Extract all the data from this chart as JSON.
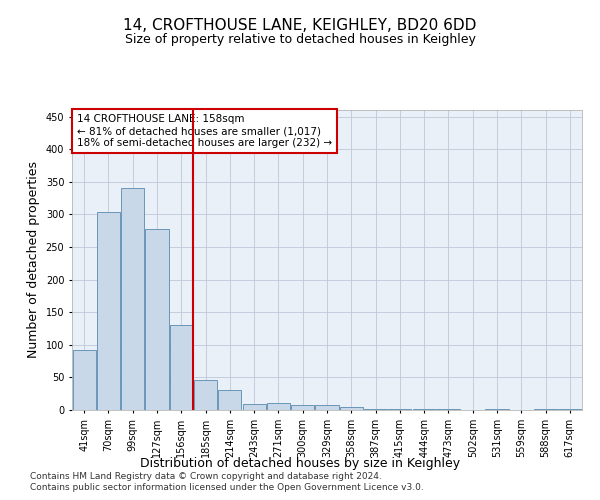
{
  "title": "14, CROFTHOUSE LANE, KEIGHLEY, BD20 6DD",
  "subtitle": "Size of property relative to detached houses in Keighley",
  "xlabel": "Distribution of detached houses by size in Keighley",
  "ylabel": "Number of detached properties",
  "categories": [
    "41sqm",
    "70sqm",
    "99sqm",
    "127sqm",
    "156sqm",
    "185sqm",
    "214sqm",
    "243sqm",
    "271sqm",
    "300sqm",
    "329sqm",
    "358sqm",
    "387sqm",
    "415sqm",
    "444sqm",
    "473sqm",
    "502sqm",
    "531sqm",
    "559sqm",
    "588sqm",
    "617sqm"
  ],
  "values": [
    92,
    303,
    340,
    277,
    131,
    46,
    30,
    9,
    10,
    8,
    8,
    4,
    2,
    1,
    2,
    1,
    0,
    2,
    0,
    1,
    2
  ],
  "bar_color": "#c8d8e8",
  "bar_edge_color": "#5a8ab0",
  "subject_line_color": "#cc0000",
  "annotation_line1": "14 CROFTHOUSE LANE: 158sqm",
  "annotation_line2": "← 81% of detached houses are smaller (1,017)",
  "annotation_line3": "18% of semi-detached houses are larger (232) →",
  "annotation_box_color": "#cc0000",
  "ylim": [
    0,
    460
  ],
  "yticks": [
    0,
    50,
    100,
    150,
    200,
    250,
    300,
    350,
    400,
    450
  ],
  "footer1": "Contains HM Land Registry data © Crown copyright and database right 2024.",
  "footer2": "Contains public sector information licensed under the Open Government Licence v3.0.",
  "background_color": "#ffffff",
  "plot_bg_color": "#eaf0f8",
  "grid_color": "#c0c8d8",
  "title_fontsize": 11,
  "subtitle_fontsize": 9,
  "axis_label_fontsize": 9,
  "tick_fontsize": 7,
  "annotation_fontsize": 7.5,
  "footer_fontsize": 6.5
}
